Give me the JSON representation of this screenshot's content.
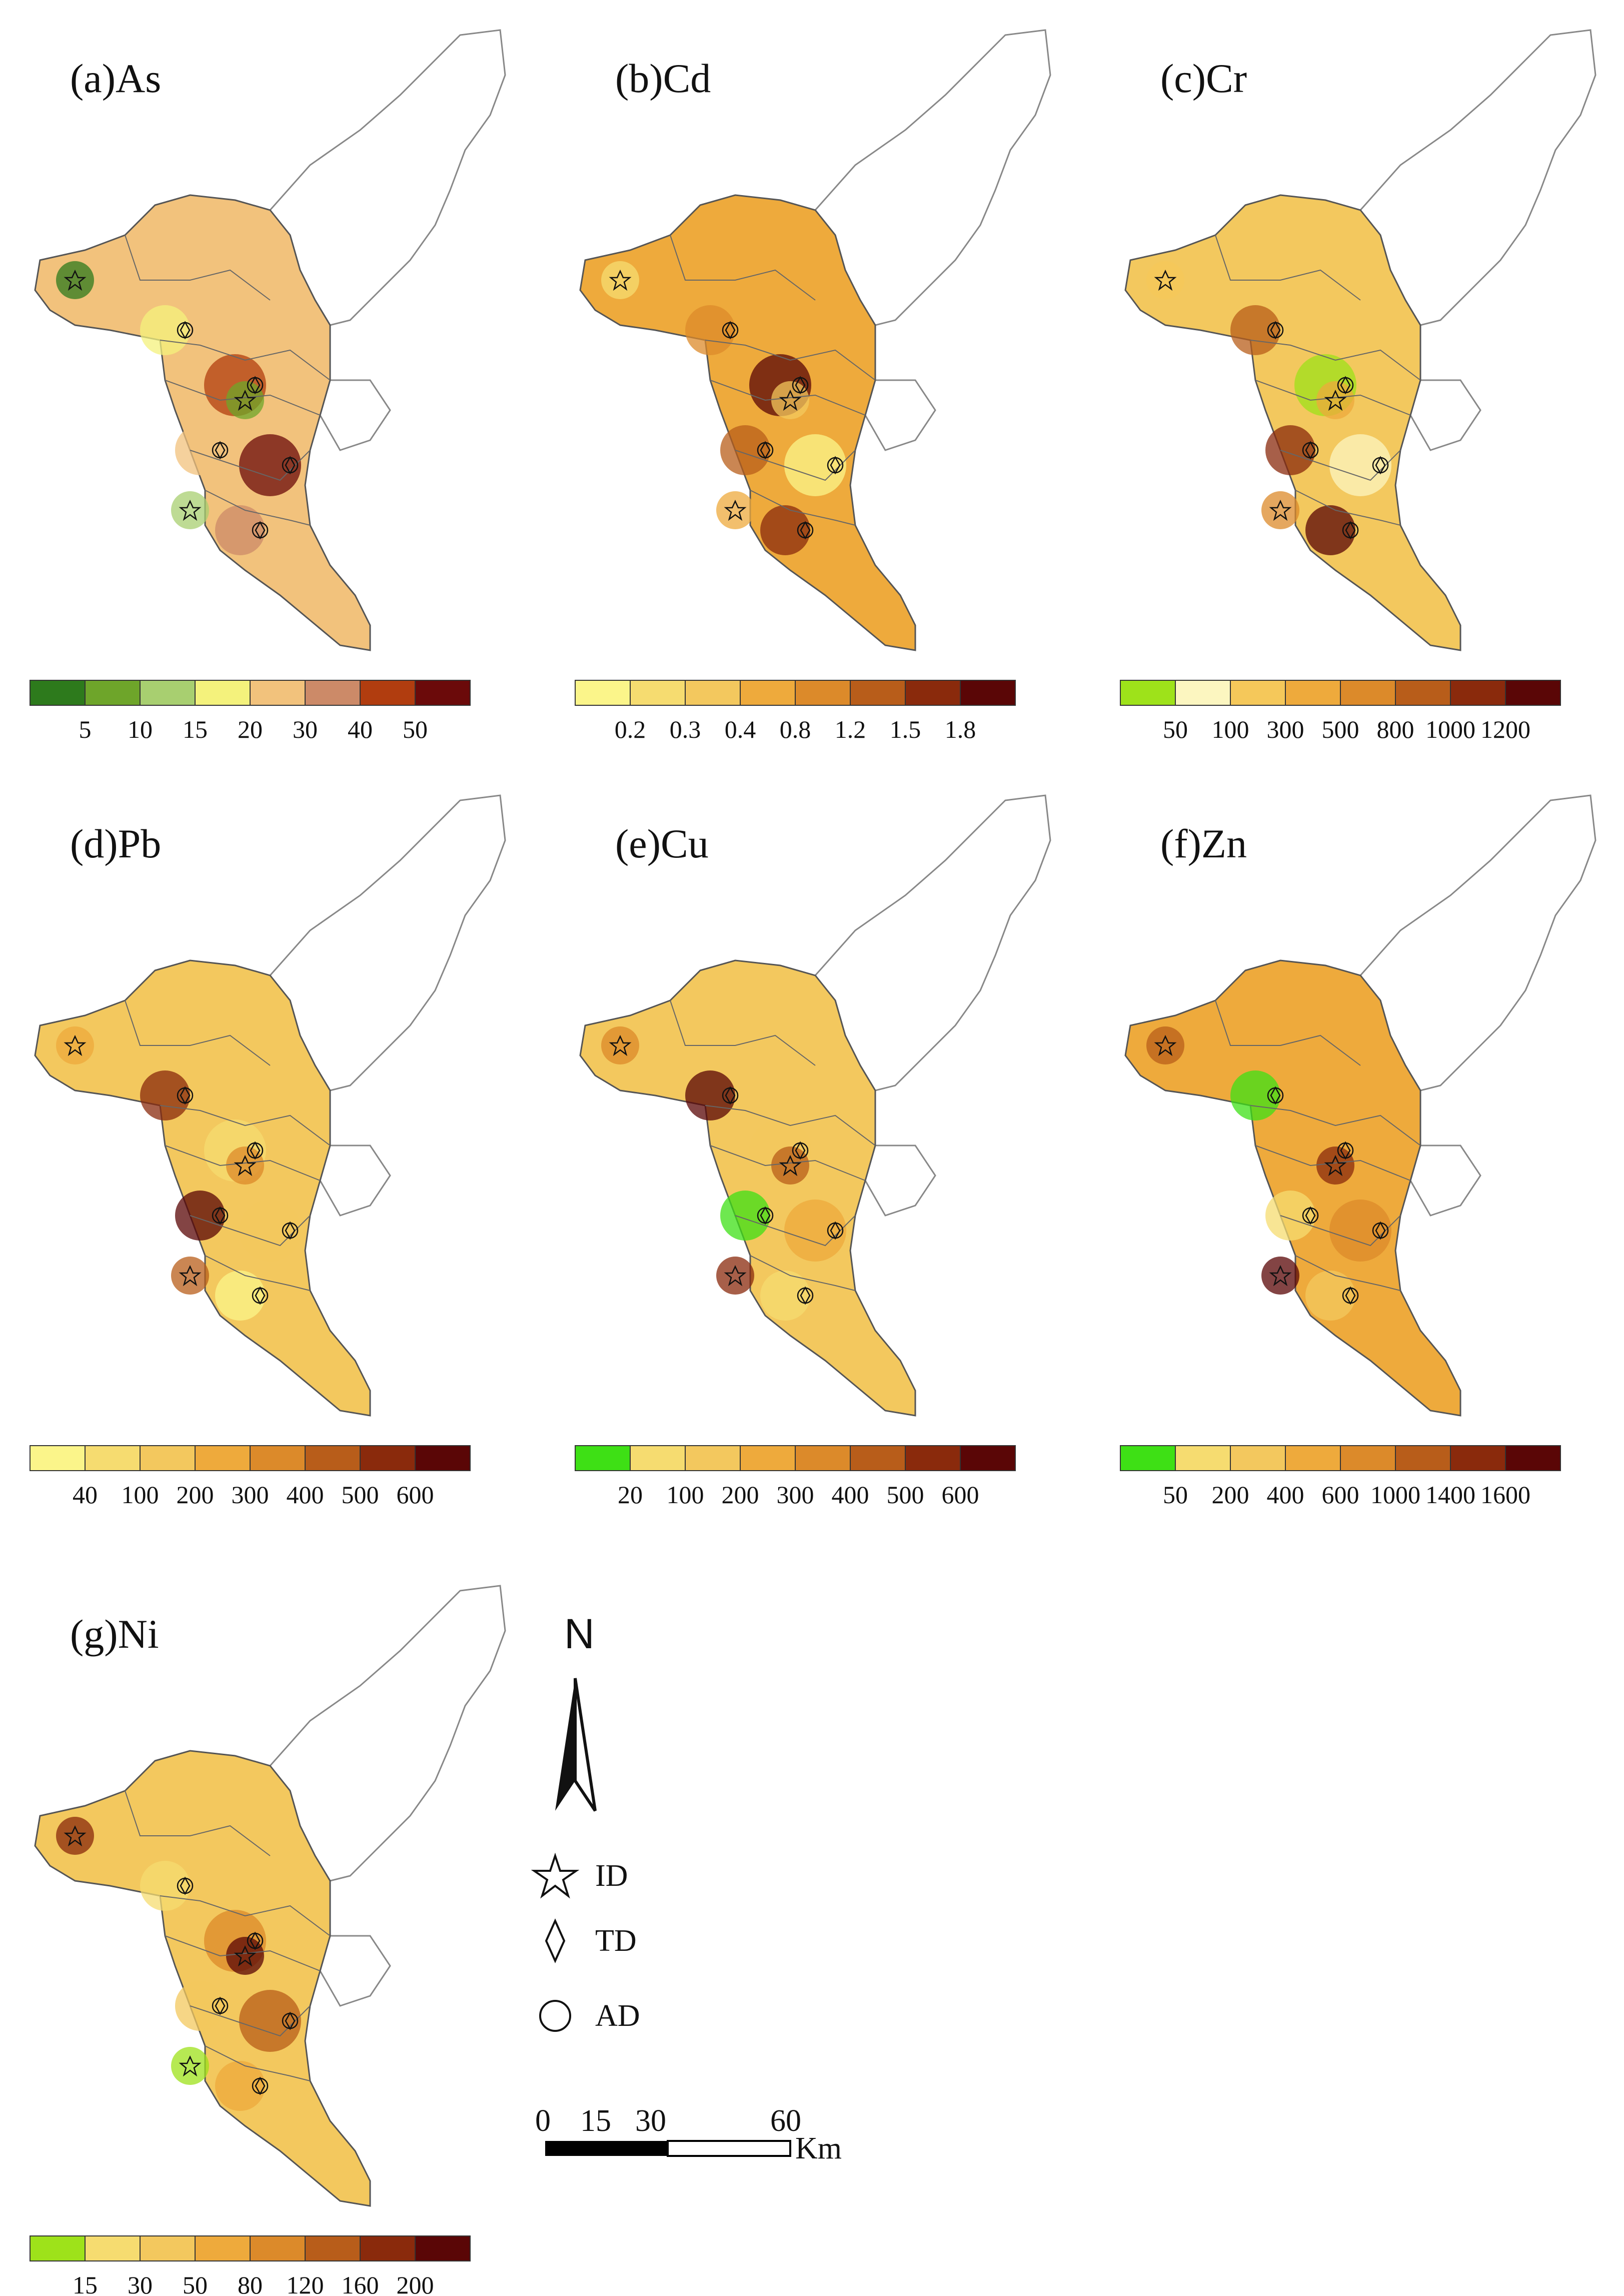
{
  "panels": [
    {
      "title": "(a)As",
      "ramp": [
        "#2d7a1c",
        "#6ea52a",
        "#a8cf70",
        "#f4f27c",
        "#f2c27c",
        "#cc8a68",
        "#b13d0f",
        "#6b0a0a"
      ],
      "labels": [
        "5",
        "10",
        "15",
        "20",
        "30",
        "40",
        "50"
      ],
      "base": "#f2c27c"
    },
    {
      "title": "(b)Cd",
      "ramp": [
        "#fbf58a",
        "#f6dc70",
        "#f3c85e",
        "#eeaa3c",
        "#dc8a2a",
        "#b85d1a",
        "#8a2a0c",
        "#5a0606"
      ],
      "labels": [
        "0.2",
        "0.3",
        "0.4",
        "0.8",
        "1.2",
        "1.5",
        "1.8"
      ],
      "base": "#eeaa3c"
    },
    {
      "title": "(c)Cr",
      "ramp": [
        "#9ee21a",
        "#fcf6c0",
        "#f5c85a",
        "#eeaa3c",
        "#dc8a2a",
        "#b85d1a",
        "#8a2a0c",
        "#5a0606"
      ],
      "labels": [
        "50",
        "100",
        "300",
        "500",
        "800",
        "1000",
        "1200"
      ],
      "base": "#f3c85e"
    },
    {
      "title": "(d)Pb",
      "ramp": [
        "#fbf58a",
        "#f6dc70",
        "#f3c85e",
        "#eeaa3c",
        "#dc8a2a",
        "#b85d1a",
        "#8a2a0c",
        "#5a0606"
      ],
      "labels": [
        "40",
        "100",
        "200",
        "300",
        "400",
        "500",
        "600"
      ],
      "base": "#f3c85e"
    },
    {
      "title": "(e)Cu",
      "ramp": [
        "#3ee015",
        "#f6dc70",
        "#f3c85e",
        "#eeaa3c",
        "#dc8a2a",
        "#b85d1a",
        "#8a2a0c",
        "#5a0606"
      ],
      "labels": [
        "20",
        "100",
        "200",
        "300",
        "400",
        "500",
        "600"
      ],
      "base": "#f3c85e"
    },
    {
      "title": "(f)Zn",
      "ramp": [
        "#3ee015",
        "#f6dc70",
        "#f3c85e",
        "#eeaa3c",
        "#dc8a2a",
        "#b85d1a",
        "#8a2a0c",
        "#5a0606"
      ],
      "labels": [
        "50",
        "200",
        "400",
        "600",
        "1000",
        "1400",
        "1600"
      ],
      "base": "#eeaa3c"
    },
    {
      "title": "(g)Ni",
      "ramp": [
        "#9ee21a",
        "#f6dc70",
        "#f3c85e",
        "#eeaa3c",
        "#dc8a2a",
        "#b85d1a",
        "#8a2a0c",
        "#5a0606"
      ],
      "labels": [
        "15",
        "30",
        "50",
        "80",
        "120",
        "160",
        "200"
      ],
      "base": "#f3c85e"
    }
  ],
  "legend": {
    "north": "N",
    "id_label": "ID",
    "td_label": "TD",
    "ad_label": "AD"
  },
  "scale": {
    "labels": [
      "0",
      "15",
      "30",
      "60"
    ],
    "unit": "Km"
  }
}
